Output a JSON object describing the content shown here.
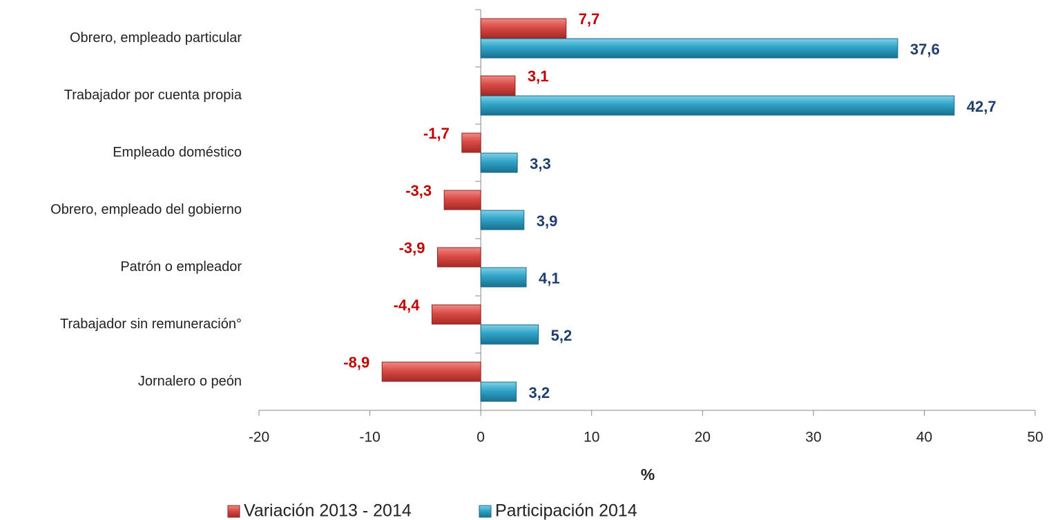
{
  "chart_data": {
    "type": "hbar",
    "categories": [
      "Obrero, empleado particular",
      "Trabajador por cuenta propia",
      "Empleado doméstico",
      "Obrero, empleado del gobierno",
      "Patrón o empleador",
      "Trabajador sin remuneración°",
      "Jornalero o peón"
    ],
    "series": [
      {
        "name": "Variación 2013 - 2014",
        "color": "#d94a45",
        "label_color": "#c00000",
        "values": [
          7.7,
          3.1,
          -1.7,
          -3.3,
          -3.9,
          -4.4,
          -8.9
        ],
        "value_labels": [
          "7,7",
          "3,1",
          "-1,7",
          "-3,3",
          "-3,9",
          "-4,4",
          "-8,9"
        ]
      },
      {
        "name": "Participación 2014",
        "color": "#2fa3c6",
        "label_color": "#1f3f6e",
        "values": [
          37.6,
          42.7,
          3.3,
          3.9,
          4.1,
          5.2,
          3.2
        ],
        "value_labels": [
          "37,6",
          "42,7",
          "3,3",
          "3,9",
          "4,1",
          "5,2",
          "3,2"
        ]
      }
    ],
    "xlabel": "%",
    "xlim": [
      -20,
      50
    ],
    "xticks": [
      -20,
      -10,
      0,
      10,
      20,
      30,
      40,
      50
    ],
    "legend": "bottom"
  }
}
